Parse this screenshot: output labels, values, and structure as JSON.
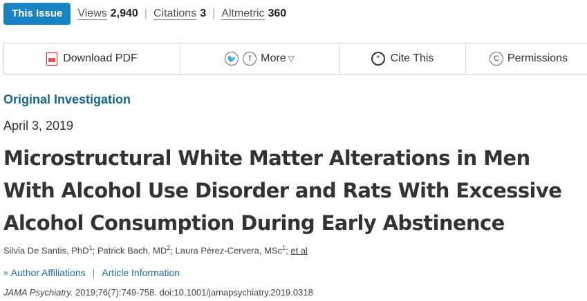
{
  "metrics": {
    "issue_button": "This Issue",
    "views_label": "Views",
    "views_value": "2,940",
    "citations_label": "Citations",
    "citations_value": "3",
    "altmetric_label": "Altmetric",
    "altmetric_value": "360"
  },
  "toolbar": {
    "download_pdf": "Download PDF",
    "twitter_icon_glyph": "🐦",
    "facebook_icon_glyph": "f",
    "more": "More",
    "cite_icon_glyph": "“",
    "cite": "Cite This",
    "permissions_icon_glyph": "C",
    "permissions": "Permissions"
  },
  "article": {
    "category": "Original Investigation",
    "date": "April 3, 2019",
    "title": "Microstructural White Matter Alterations in Men With Alcohol Use Disorder and Rats With Excessive Alcohol Consumption During Early Abstinence",
    "authors": [
      {
        "name": "Silvia De Santis, PhD",
        "aff": "1",
        "sep": "; "
      },
      {
        "name": "Patrick Bach, MD",
        "aff": "2",
        "sep": "; "
      },
      {
        "name": "Laura Pérez-Cervera, MSc",
        "aff": "1",
        "sep": "; "
      }
    ],
    "et_al": "et al",
    "author_affiliations": "Author Affiliations",
    "article_information": "Article Information",
    "journal": "JAMA Psychiatry.",
    "citation_rest": " 2019;76(7):749-758. doi:10.1001/jamapsychiatry.2019.0318"
  },
  "colors": {
    "issue_button_bg": "#1a83c1",
    "category": "#17668f",
    "link": "#1a6ea8"
  }
}
